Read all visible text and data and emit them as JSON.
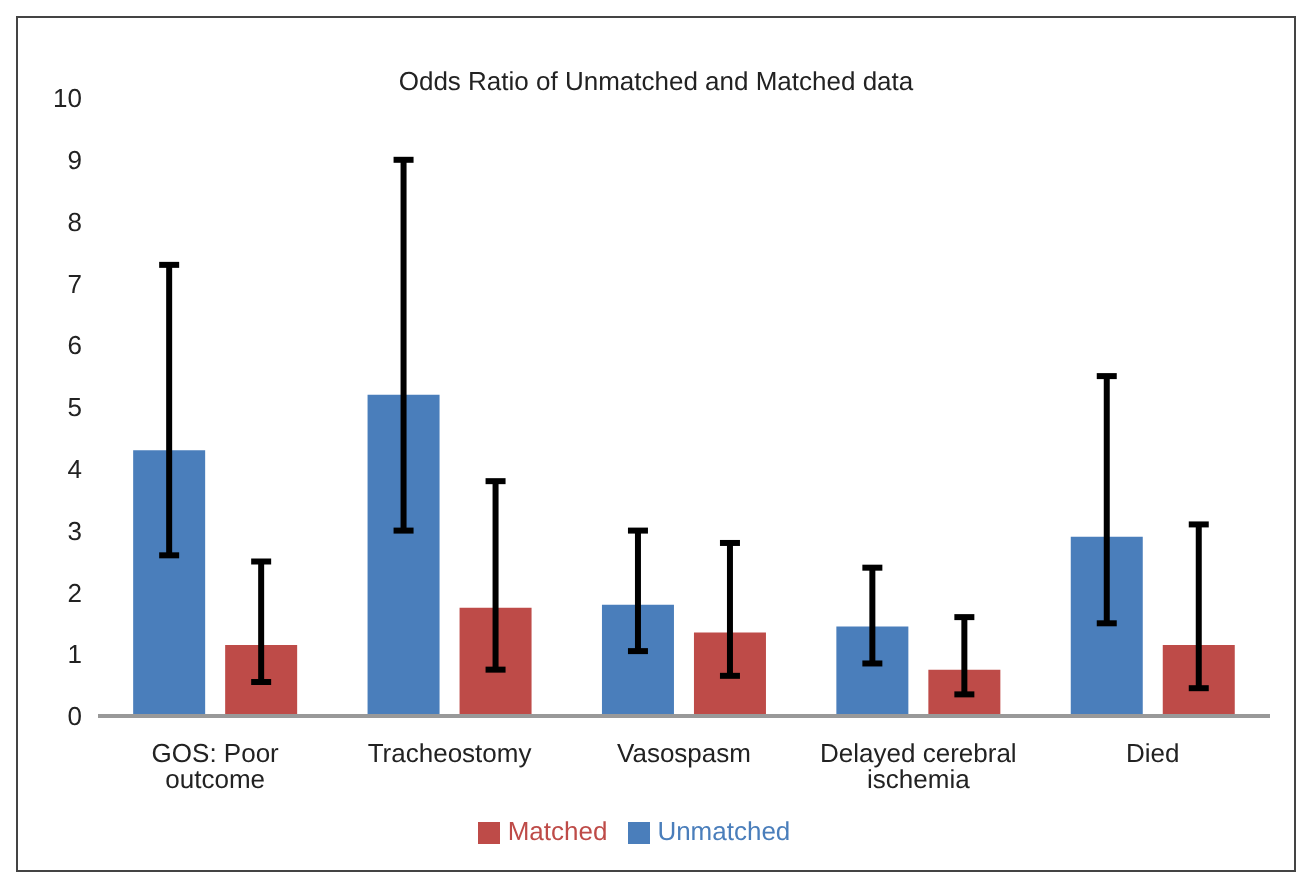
{
  "chart_data": {
    "type": "bar",
    "title": "Odds Ratio of Unmatched and Matched data",
    "categories": [
      "GOS: Poor outcome",
      "Tracheostomy",
      "Vasospasm",
      "Delayed cerebral ischemia",
      "Died"
    ],
    "series": [
      {
        "name": "Unmatched",
        "color": "#4a7ebb",
        "values": [
          4.3,
          5.2,
          1.8,
          1.45,
          2.9
        ],
        "errors": [
          [
            2.6,
            7.3
          ],
          [
            3.0,
            9.0
          ],
          [
            1.05,
            3.0
          ],
          [
            0.85,
            2.4
          ],
          [
            1.5,
            5.5
          ]
        ]
      },
      {
        "name": "Matched",
        "color": "#be4b48",
        "values": [
          1.15,
          1.75,
          1.35,
          0.75,
          1.15
        ],
        "errors": [
          [
            0.55,
            2.5
          ],
          [
            0.75,
            3.8
          ],
          [
            0.65,
            2.8
          ],
          [
            0.35,
            1.6
          ],
          [
            0.45,
            3.1
          ]
        ]
      }
    ],
    "ylim": [
      0,
      10
    ],
    "yticks": [
      0,
      1,
      2,
      3,
      4,
      5,
      6,
      7,
      8,
      9,
      10
    ],
    "grid": false,
    "legend": "bottom"
  }
}
